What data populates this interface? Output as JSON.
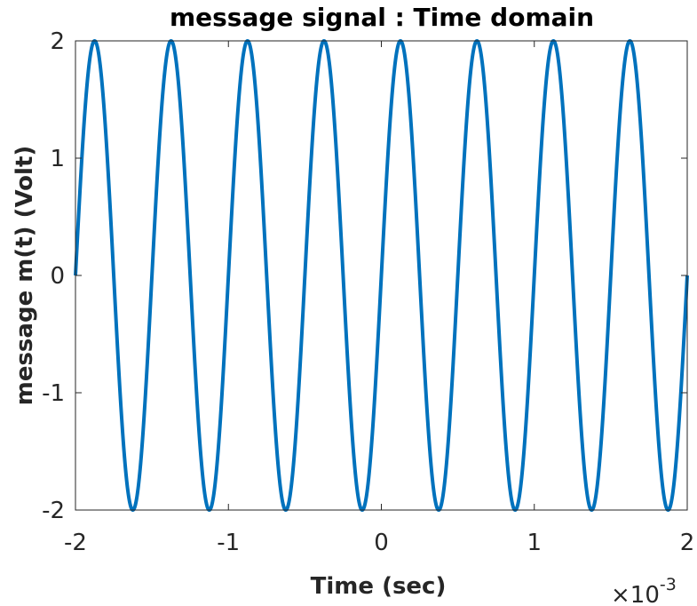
{
  "chart_data": {
    "type": "line",
    "title": "message signal : Time domain",
    "xlabel": "Time (sec)",
    "ylabel": "message  m(t)  (Volt)",
    "x_exponent_base": "×10",
    "x_exponent_power": "-3",
    "xlim": [
      -0.002,
      0.002
    ],
    "ylim": [
      -2,
      2
    ],
    "xticks": [
      -0.002,
      -0.001,
      0,
      0.001,
      0.002
    ],
    "xtick_labels": [
      "-2",
      "-1",
      "0",
      "1",
      "2"
    ],
    "yticks": [
      -2,
      -1,
      0,
      1,
      2
    ],
    "ytick_labels": [
      "-2",
      "-1",
      "0",
      "1",
      "2"
    ],
    "grid": false,
    "series": [
      {
        "function": "m(t) = 2 sin(2π·2000·t)",
        "amplitude": 2,
        "frequency_hz": 2000,
        "phase_rad": 0,
        "t_start": -0.002,
        "t_end": 0.002,
        "color": "#0072BD"
      }
    ]
  }
}
